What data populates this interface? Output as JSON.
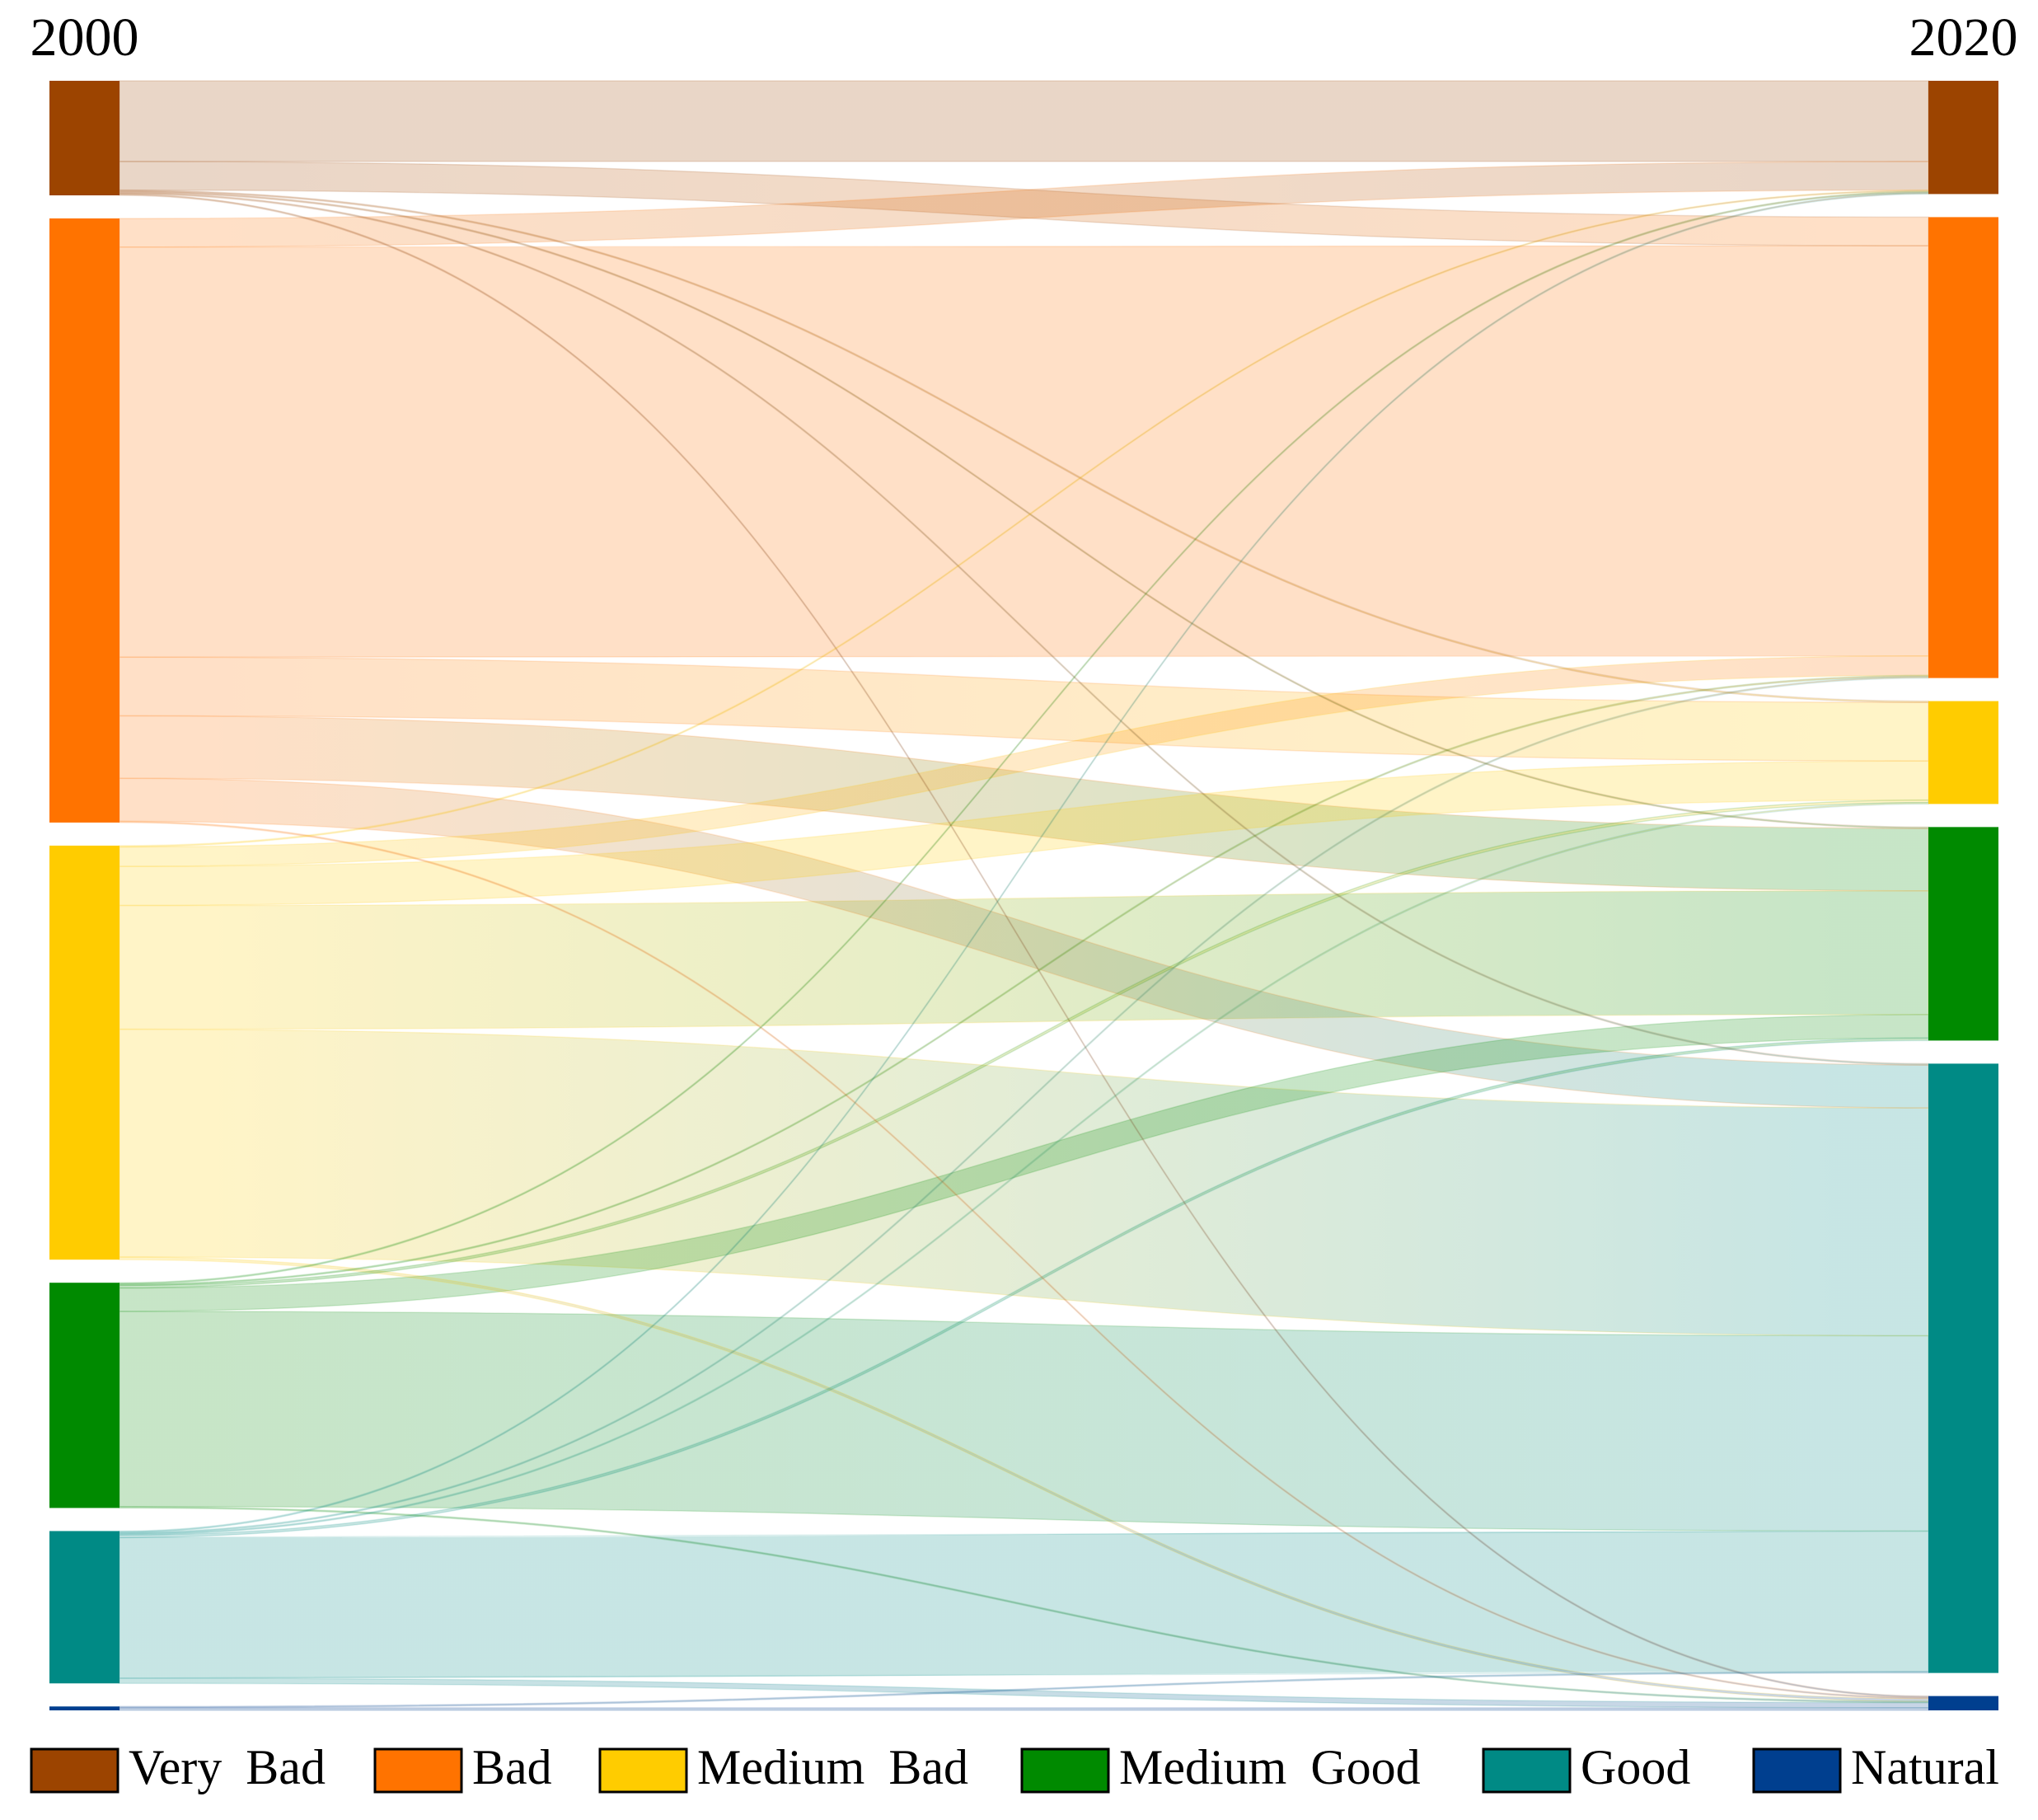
{
  "chart_data": {
    "type": "sankey",
    "columns": [
      "2000",
      "2020"
    ],
    "nodes": [
      {
        "name": "Very Bad",
        "color": "#9c4400"
      },
      {
        "name": "Bad",
        "color": "#ff7300"
      },
      {
        "name": "Medium Bad",
        "color": "#ffcc00"
      },
      {
        "name": "Medium Good",
        "color": "#008a00"
      },
      {
        "name": "Good",
        "color": "#008a85"
      },
      {
        "name": "Natural",
        "color": "#003f8f"
      }
    ],
    "links": [
      {
        "source": 0,
        "target": 0,
        "value": 62
      },
      {
        "source": 0,
        "target": 1,
        "value": 22
      },
      {
        "source": 0,
        "target": 2,
        "value": 1
      },
      {
        "source": 0,
        "target": 3,
        "value": 1
      },
      {
        "source": 0,
        "target": 4,
        "value": 1
      },
      {
        "source": 0,
        "target": 5,
        "value": 1
      },
      {
        "source": 1,
        "target": 0,
        "value": 22
      },
      {
        "source": 1,
        "target": 1,
        "value": 315
      },
      {
        "source": 1,
        "target": 2,
        "value": 45
      },
      {
        "source": 1,
        "target": 3,
        "value": 48
      },
      {
        "source": 1,
        "target": 4,
        "value": 33
      },
      {
        "source": 1,
        "target": 5,
        "value": 1
      },
      {
        "source": 2,
        "target": 0,
        "value": 1
      },
      {
        "source": 2,
        "target": 1,
        "value": 15
      },
      {
        "source": 2,
        "target": 2,
        "value": 30
      },
      {
        "source": 2,
        "target": 3,
        "value": 95
      },
      {
        "source": 2,
        "target": 4,
        "value": 175
      },
      {
        "source": 2,
        "target": 5,
        "value": 2
      },
      {
        "source": 3,
        "target": 0,
        "value": 1
      },
      {
        "source": 3,
        "target": 1,
        "value": 1
      },
      {
        "source": 3,
        "target": 2,
        "value": 2
      },
      {
        "source": 3,
        "target": 3,
        "value": 18
      },
      {
        "source": 3,
        "target": 4,
        "value": 150
      },
      {
        "source": 3,
        "target": 5,
        "value": 1
      },
      {
        "source": 4,
        "target": 0,
        "value": 1
      },
      {
        "source": 4,
        "target": 1,
        "value": 1
      },
      {
        "source": 4,
        "target": 2,
        "value": 1
      },
      {
        "source": 4,
        "target": 3,
        "value": 2
      },
      {
        "source": 4,
        "target": 4,
        "value": 108
      },
      {
        "source": 4,
        "target": 5,
        "value": 4
      },
      {
        "source": 5,
        "target": 4,
        "value": 1
      },
      {
        "source": 5,
        "target": 5,
        "value": 2
      }
    ]
  }
}
